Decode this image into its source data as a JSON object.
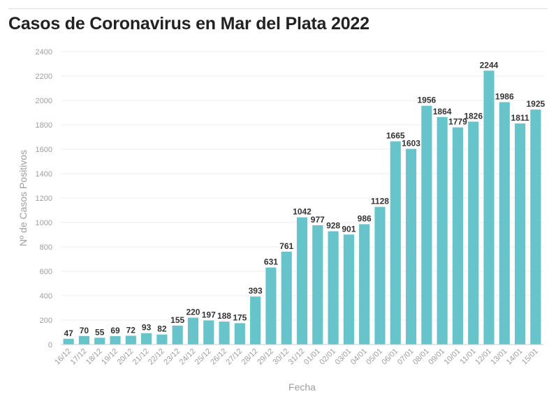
{
  "title": "Casos de Coronavirus en Mar del Plata 2022",
  "chart_data": {
    "type": "bar",
    "title": "Casos de Coronavirus en Mar del Plata 2022",
    "xlabel": "Fecha",
    "ylabel": "Nº de Casos Positivos",
    "ylim": [
      0,
      2400
    ],
    "yticks": [
      0,
      200,
      400,
      600,
      800,
      1000,
      1200,
      1400,
      1600,
      1800,
      2000,
      2200,
      2400
    ],
    "grid": true,
    "bar_color": "#67c4cb",
    "categories": [
      "16/12",
      "17/12",
      "18/12",
      "19/12",
      "20/12",
      "21/12",
      "22/12",
      "23/12",
      "24/12",
      "25/12",
      "26/12",
      "27/12",
      "28/12",
      "29/12",
      "30/12",
      "31/12",
      "01/01",
      "02/01",
      "03/01",
      "04/01",
      "05/01",
      "06/01",
      "07/01",
      "08/01",
      "09/01",
      "10/01",
      "11/01",
      "12/01",
      "13/01",
      "14/01",
      "15/01"
    ],
    "values": [
      47,
      70,
      55,
      69,
      72,
      93,
      82,
      155,
      220,
      197,
      188,
      175,
      393,
      631,
      761,
      1042,
      977,
      928,
      901,
      986,
      1128,
      1665,
      1603,
      1956,
      1864,
      1779,
      1826,
      2244,
      1986,
      1811,
      1925
    ]
  }
}
